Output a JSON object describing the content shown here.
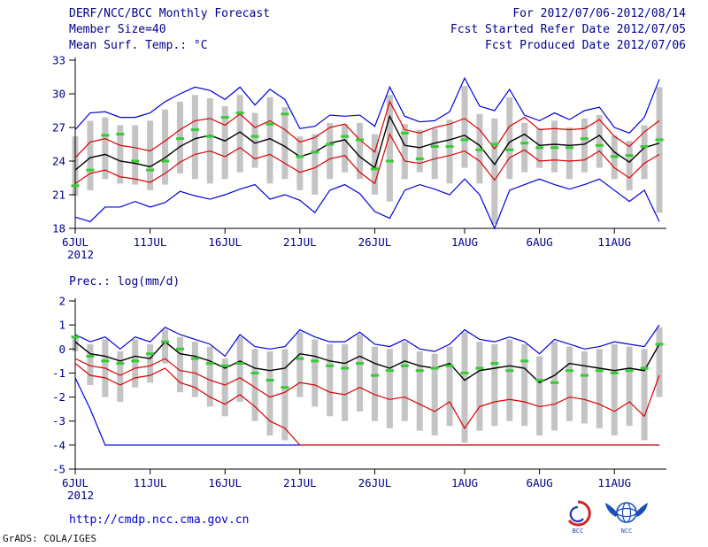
{
  "header": {
    "title": "DERF/NCC/BCC Monthly Forecast",
    "date_range": "For 2012/07/06-2012/08/14",
    "member_size": "Member Size=40",
    "refer_date": "Fcst Started Refer Date 2012/07/05",
    "produced_date": "Fcst Produced Date 2012/07/06"
  },
  "footer": {
    "url": "http://cmdp.ncc.cma.gov.cn",
    "credit": "GrADS: COLA/IGES",
    "logos": [
      {
        "label": "BCC"
      },
      {
        "label": "NCC"
      }
    ]
  },
  "colors": {
    "annotation_text": "#00008b",
    "link_text": "#0000dd",
    "axis": "#000000",
    "max_min_line": "#0000e0",
    "percentile_line": "#dd0000",
    "mean_line": "#000000",
    "obs_dash": "#33cc33",
    "spread_bar": "#c4c4c4"
  },
  "chart_data": [
    {
      "type": "line",
      "title": "Mean Surf. Temp.: °C",
      "ylim": [
        18,
        33
      ],
      "yticks": [
        18,
        21,
        24,
        27,
        30,
        33
      ],
      "n_points": 40,
      "x_ticks": [
        {
          "index": 0,
          "label": "6JUL",
          "sublabel": "2012"
        },
        {
          "index": 5,
          "label": "11JUL"
        },
        {
          "index": 10,
          "label": "16JUL"
        },
        {
          "index": 15,
          "label": "21JUL"
        },
        {
          "index": 20,
          "label": "26JUL"
        },
        {
          "index": 26,
          "label": "1AUG"
        },
        {
          "index": 31,
          "label": "6AUG"
        },
        {
          "index": 36,
          "label": "11AUG"
        }
      ],
      "bars": {
        "name": "ensemble-spread",
        "color": "#c4c4c4",
        "low": [
          20.9,
          21.4,
          22.4,
          22.0,
          21.9,
          21.4,
          21.9,
          22.9,
          22.4,
          22.0,
          22.4,
          23.0,
          23.4,
          22.0,
          22.4,
          21.4,
          21.0,
          22.4,
          23.0,
          22.4,
          21.0,
          20.4,
          22.4,
          23.0,
          22.4,
          22.0,
          23.4,
          22.0,
          18.4,
          22.4,
          23.0,
          23.4,
          23.0,
          22.4,
          23.0,
          23.4,
          22.4,
          21.4,
          22.4,
          19.4
        ],
        "high": [
          26.2,
          27.6,
          27.9,
          27.2,
          27.2,
          27.6,
          28.6,
          29.3,
          29.9,
          29.6,
          28.9,
          29.9,
          28.3,
          29.7,
          28.8,
          26.2,
          26.4,
          27.4,
          27.3,
          27.4,
          26.4,
          29.9,
          27.3,
          26.8,
          26.9,
          27.7,
          30.7,
          28.2,
          27.8,
          29.7,
          27.4,
          26.9,
          27.6,
          27.0,
          27.8,
          28.1,
          26.3,
          25.8,
          27.2,
          30.6
        ]
      },
      "series": [
        {
          "name": "ensemble-max",
          "color": "#0000e0",
          "values": [
            26.8,
            28.3,
            28.4,
            27.9,
            27.9,
            28.3,
            29.3,
            30.0,
            30.6,
            30.3,
            29.5,
            30.6,
            29.0,
            30.4,
            29.5,
            26.9,
            27.1,
            28.1,
            28.0,
            28.1,
            27.1,
            30.6,
            28.0,
            27.5,
            27.6,
            28.4,
            31.4,
            28.9,
            28.5,
            30.4,
            28.1,
            27.6,
            28.3,
            27.7,
            28.5,
            28.8,
            27.0,
            26.5,
            27.9,
            31.3
          ]
        },
        {
          "name": "ensemble-min",
          "color": "#0000e0",
          "values": [
            19.0,
            18.6,
            19.9,
            19.9,
            20.4,
            19.9,
            20.3,
            21.3,
            20.9,
            20.6,
            21.0,
            21.5,
            21.9,
            20.6,
            21.0,
            20.5,
            19.4,
            21.4,
            21.9,
            21.1,
            19.5,
            18.9,
            21.4,
            21.9,
            21.5,
            21.0,
            22.4,
            21.0,
            18.0,
            21.4,
            21.9,
            22.4,
            21.9,
            21.5,
            21.9,
            22.4,
            21.4,
            20.4,
            21.4,
            18.6
          ]
        },
        {
          "name": "upper-percentile",
          "color": "#dd0000",
          "values": [
            24.3,
            25.7,
            26.0,
            25.4,
            25.2,
            24.9,
            25.8,
            26.8,
            27.6,
            27.8,
            27.2,
            28.2,
            27.0,
            27.6,
            26.8,
            25.7,
            26.1,
            27.0,
            27.3,
            25.9,
            24.8,
            29.3,
            26.8,
            26.5,
            27.0,
            27.3,
            27.8,
            26.8,
            25.1,
            27.1,
            27.9,
            26.8,
            26.9,
            26.8,
            26.9,
            27.7,
            26.2,
            25.3,
            26.6,
            27.6
          ]
        },
        {
          "name": "lower-percentile",
          "color": "#dd0000",
          "values": [
            22.0,
            22.9,
            23.2,
            22.6,
            22.4,
            22.1,
            22.9,
            23.9,
            24.6,
            24.9,
            24.4,
            25.2,
            24.2,
            24.6,
            23.8,
            23.0,
            23.4,
            24.2,
            24.5,
            23.0,
            22.0,
            26.4,
            24.0,
            23.8,
            24.2,
            24.5,
            24.9,
            24.0,
            22.3,
            24.3,
            25.0,
            24.0,
            24.1,
            24.0,
            24.1,
            24.9,
            23.4,
            22.5,
            23.8,
            24.6
          ]
        },
        {
          "name": "ensemble-mean",
          "color": "#000000",
          "width": 1.4,
          "values": [
            23.2,
            24.3,
            24.6,
            24.0,
            23.8,
            23.5,
            24.3,
            25.3,
            26.0,
            26.3,
            25.8,
            26.6,
            25.6,
            26.0,
            25.3,
            24.4,
            24.8,
            25.6,
            25.9,
            24.4,
            23.4,
            28.0,
            25.4,
            25.2,
            25.6,
            25.9,
            26.3,
            25.4,
            23.7,
            25.7,
            26.4,
            25.4,
            25.5,
            25.4,
            25.5,
            26.3,
            24.8,
            23.9,
            25.2,
            25.6
          ]
        }
      ],
      "dashes": {
        "name": "observation",
        "color": "#33cc33",
        "values": [
          21.8,
          23.2,
          26.3,
          26.4,
          24.0,
          23.2,
          24.0,
          26.0,
          26.8,
          26.2,
          27.9,
          28.3,
          26.2,
          27.3,
          28.2,
          24.4,
          24.8,
          25.5,
          26.2,
          25.9,
          23.3,
          24.0,
          26.5,
          24.2,
          25.3,
          25.3,
          25.9,
          25.0,
          25.5,
          25.0,
          25.6,
          25.2,
          25.2,
          25.2,
          26.0,
          25.4,
          24.4,
          24.5,
          25.3,
          25.9
        ]
      }
    },
    {
      "type": "line",
      "title": "Prec.: log(mm/d)",
      "ylim": [
        -5,
        2
      ],
      "yticks": [
        -5,
        -4,
        -3,
        -2,
        -1,
        0,
        1,
        2
      ],
      "n_points": 40,
      "x_ticks": [
        {
          "index": 0,
          "label": "6JUL",
          "sublabel": "2012"
        },
        {
          "index": 5,
          "label": "11JUL"
        },
        {
          "index": 10,
          "label": "16JUL"
        },
        {
          "index": 15,
          "label": "21JUL"
        },
        {
          "index": 20,
          "label": "26JUL"
        },
        {
          "index": 26,
          "label": "1AUG"
        },
        {
          "index": 31,
          "label": "6AUG"
        },
        {
          "index": 36,
          "label": "11AUG"
        }
      ],
      "bars": {
        "name": "ensemble-spread",
        "color": "#c4c4c4",
        "low": [
          -0.1,
          -1.5,
          -2.0,
          -2.2,
          -1.6,
          -1.4,
          -0.6,
          -1.8,
          -2.0,
          -2.4,
          -2.8,
          -2.2,
          -3.0,
          -3.6,
          -3.8,
          -2.0,
          -2.4,
          -2.8,
          -3.0,
          -2.6,
          -3.0,
          -3.3,
          -3.0,
          -3.4,
          -3.6,
          -3.2,
          -3.9,
          -3.4,
          -3.2,
          -3.0,
          -3.2,
          -3.6,
          -3.4,
          -3.0,
          -3.1,
          -3.3,
          -3.6,
          -3.2,
          -3.8,
          -2.0
        ],
        "high": [
          0.5,
          0.2,
          0.4,
          -0.1,
          0.4,
          0.2,
          0.8,
          0.5,
          0.3,
          0.1,
          -0.4,
          0.5,
          0.0,
          -0.1,
          0.0,
          0.7,
          0.4,
          0.2,
          0.2,
          0.6,
          0.1,
          0.0,
          0.3,
          -0.1,
          -0.2,
          0.1,
          0.7,
          0.3,
          0.2,
          0.4,
          0.2,
          -0.3,
          0.3,
          0.1,
          -0.1,
          0.0,
          0.2,
          0.1,
          0.0,
          0.9
        ]
      },
      "series": [
        {
          "name": "ensemble-max",
          "color": "#0000e0",
          "values": [
            0.6,
            0.3,
            0.5,
            0.0,
            0.5,
            0.3,
            0.9,
            0.6,
            0.4,
            0.2,
            -0.3,
            0.6,
            0.1,
            0.0,
            0.1,
            0.8,
            0.5,
            0.3,
            0.3,
            0.7,
            0.2,
            0.1,
            0.4,
            0.0,
            -0.1,
            0.2,
            0.8,
            0.4,
            0.3,
            0.5,
            0.3,
            -0.2,
            0.4,
            0.2,
            0.0,
            0.1,
            0.3,
            0.2,
            0.1,
            1.0
          ]
        },
        {
          "name": "ensemble-min",
          "color": "#0000e0",
          "values": [
            -1.2,
            -2.5,
            -4.0,
            -4.0,
            -4.0,
            -4.0,
            -4.0,
            -4.0,
            -4.0,
            -4.0,
            -4.0,
            -4.0,
            -4.0,
            -4.0,
            -4.0,
            -4.0,
            -4.0,
            -4.0,
            -4.0,
            -4.0,
            -4.0,
            -4.0,
            -4.0,
            -4.0,
            -4.0,
            -4.0,
            -4.0,
            -4.0,
            -4.0,
            -4.0,
            -4.0,
            -4.0,
            -4.0,
            -4.0,
            -4.0,
            -4.0,
            -4.0,
            -4.0,
            -4.0,
            -4.0
          ]
        },
        {
          "name": "upper-percentile",
          "color": "#dd0000",
          "values": [
            -0.4,
            -0.7,
            -0.8,
            -1.1,
            -0.8,
            -0.7,
            -0.4,
            -0.9,
            -1.0,
            -1.3,
            -1.5,
            -1.2,
            -1.6,
            -2.0,
            -1.8,
            -1.4,
            -1.5,
            -1.8,
            -1.9,
            -1.6,
            -1.9,
            -2.1,
            -2.0,
            -2.3,
            -2.6,
            -2.2,
            -3.3,
            -2.4,
            -2.2,
            -2.1,
            -2.2,
            -2.4,
            -2.3,
            -2.0,
            -2.1,
            -2.3,
            -2.6,
            -2.2,
            -2.8,
            -1.1
          ]
        },
        {
          "name": "lower-percentile",
          "color": "#dd0000",
          "values": [
            -0.6,
            -1.1,
            -1.2,
            -1.5,
            -1.2,
            -1.1,
            -0.8,
            -1.4,
            -1.6,
            -2.0,
            -2.3,
            -1.9,
            -2.4,
            -3.0,
            -3.3,
            -4.0,
            -4.0,
            -4.0,
            -4.0,
            -4.0,
            -4.0,
            -4.0,
            -4.0,
            -4.0,
            -4.0,
            -4.0,
            -4.0,
            -4.0,
            -4.0,
            -4.0,
            -4.0,
            -4.0,
            -4.0,
            -4.0,
            -4.0,
            -4.0,
            -4.0,
            -4.0,
            -4.0,
            -4.0
          ]
        },
        {
          "name": "ensemble-mean",
          "color": "#000000",
          "width": 1.4,
          "values": [
            0.3,
            -0.2,
            -0.3,
            -0.5,
            -0.3,
            -0.4,
            0.3,
            -0.2,
            -0.3,
            -0.5,
            -0.8,
            -0.5,
            -0.8,
            -0.9,
            -0.8,
            -0.2,
            -0.3,
            -0.5,
            -0.6,
            -0.3,
            -0.6,
            -0.8,
            -0.5,
            -0.7,
            -0.8,
            -0.6,
            -1.3,
            -0.9,
            -0.8,
            -0.7,
            -0.8,
            -1.4,
            -1.1,
            -0.6,
            -0.7,
            -0.8,
            -0.9,
            -0.8,
            -0.9,
            0.2
          ]
        }
      ],
      "dashes": {
        "name": "observation",
        "color": "#33cc33",
        "values": [
          0.5,
          -0.3,
          -0.5,
          -0.6,
          -0.5,
          -0.2,
          0.3,
          0.0,
          -0.4,
          -0.6,
          -0.7,
          -0.6,
          -1.0,
          -1.3,
          -1.6,
          -0.4,
          -0.5,
          -0.7,
          -0.8,
          -0.6,
          -1.1,
          -0.9,
          -0.7,
          -0.9,
          -0.8,
          -0.7,
          -1.0,
          -0.8,
          -0.6,
          -0.9,
          -0.5,
          -1.3,
          -1.4,
          -0.9,
          -1.1,
          -0.9,
          -1.0,
          -0.9,
          -0.8,
          0.2
        ]
      }
    }
  ]
}
